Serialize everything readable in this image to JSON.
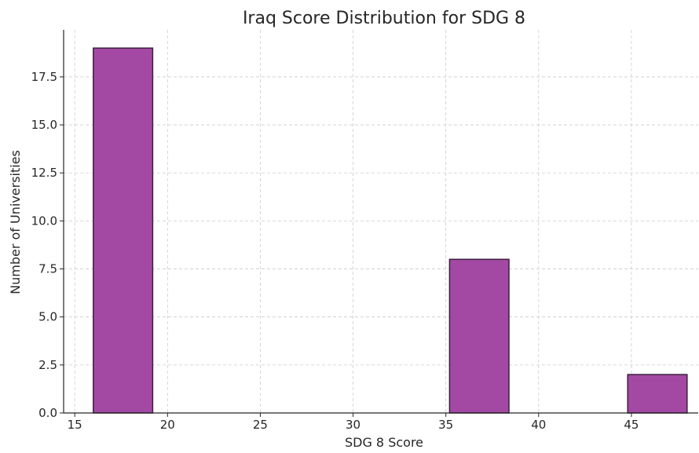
{
  "chart_data": {
    "type": "bar",
    "title": "Iraq Score Distribution for SDG 8",
    "xlabel": "SDG 8 Score",
    "ylabel": "Number of Universities",
    "xlim": [
      14.4,
      48.6
    ],
    "ylim": [
      0,
      19.95
    ],
    "xticks": [
      15,
      20,
      25,
      30,
      35,
      40,
      45
    ],
    "xtick_labels": [
      "15",
      "20",
      "25",
      "30",
      "35",
      "40",
      "45"
    ],
    "yticks": [
      0,
      2.5,
      5,
      7.5,
      10,
      12.5,
      15,
      17.5
    ],
    "ytick_labels": [
      "0.0",
      "2.5",
      "5.0",
      "7.5",
      "10.0",
      "12.5",
      "15.0",
      "17.5"
    ],
    "grid": true,
    "legend": "none",
    "bins": [
      {
        "start": 16.0,
        "end": 19.2,
        "count": 19
      },
      {
        "start": 19.2,
        "end": 22.4,
        "count": 0
      },
      {
        "start": 22.4,
        "end": 25.6,
        "count": 0
      },
      {
        "start": 25.6,
        "end": 28.8,
        "count": 0
      },
      {
        "start": 28.8,
        "end": 32.0,
        "count": 0
      },
      {
        "start": 32.0,
        "end": 35.2,
        "count": 0
      },
      {
        "start": 35.2,
        "end": 38.4,
        "count": 8
      },
      {
        "start": 38.4,
        "end": 41.6,
        "count": 0
      },
      {
        "start": 41.6,
        "end": 44.8,
        "count": 0
      },
      {
        "start": 44.8,
        "end": 48.0,
        "count": 2
      }
    ],
    "colors": {
      "bar_fill": "#a349a4",
      "bar_edge": "#3d1f3d",
      "grid": "#cccccc",
      "axis": "#262626"
    }
  }
}
